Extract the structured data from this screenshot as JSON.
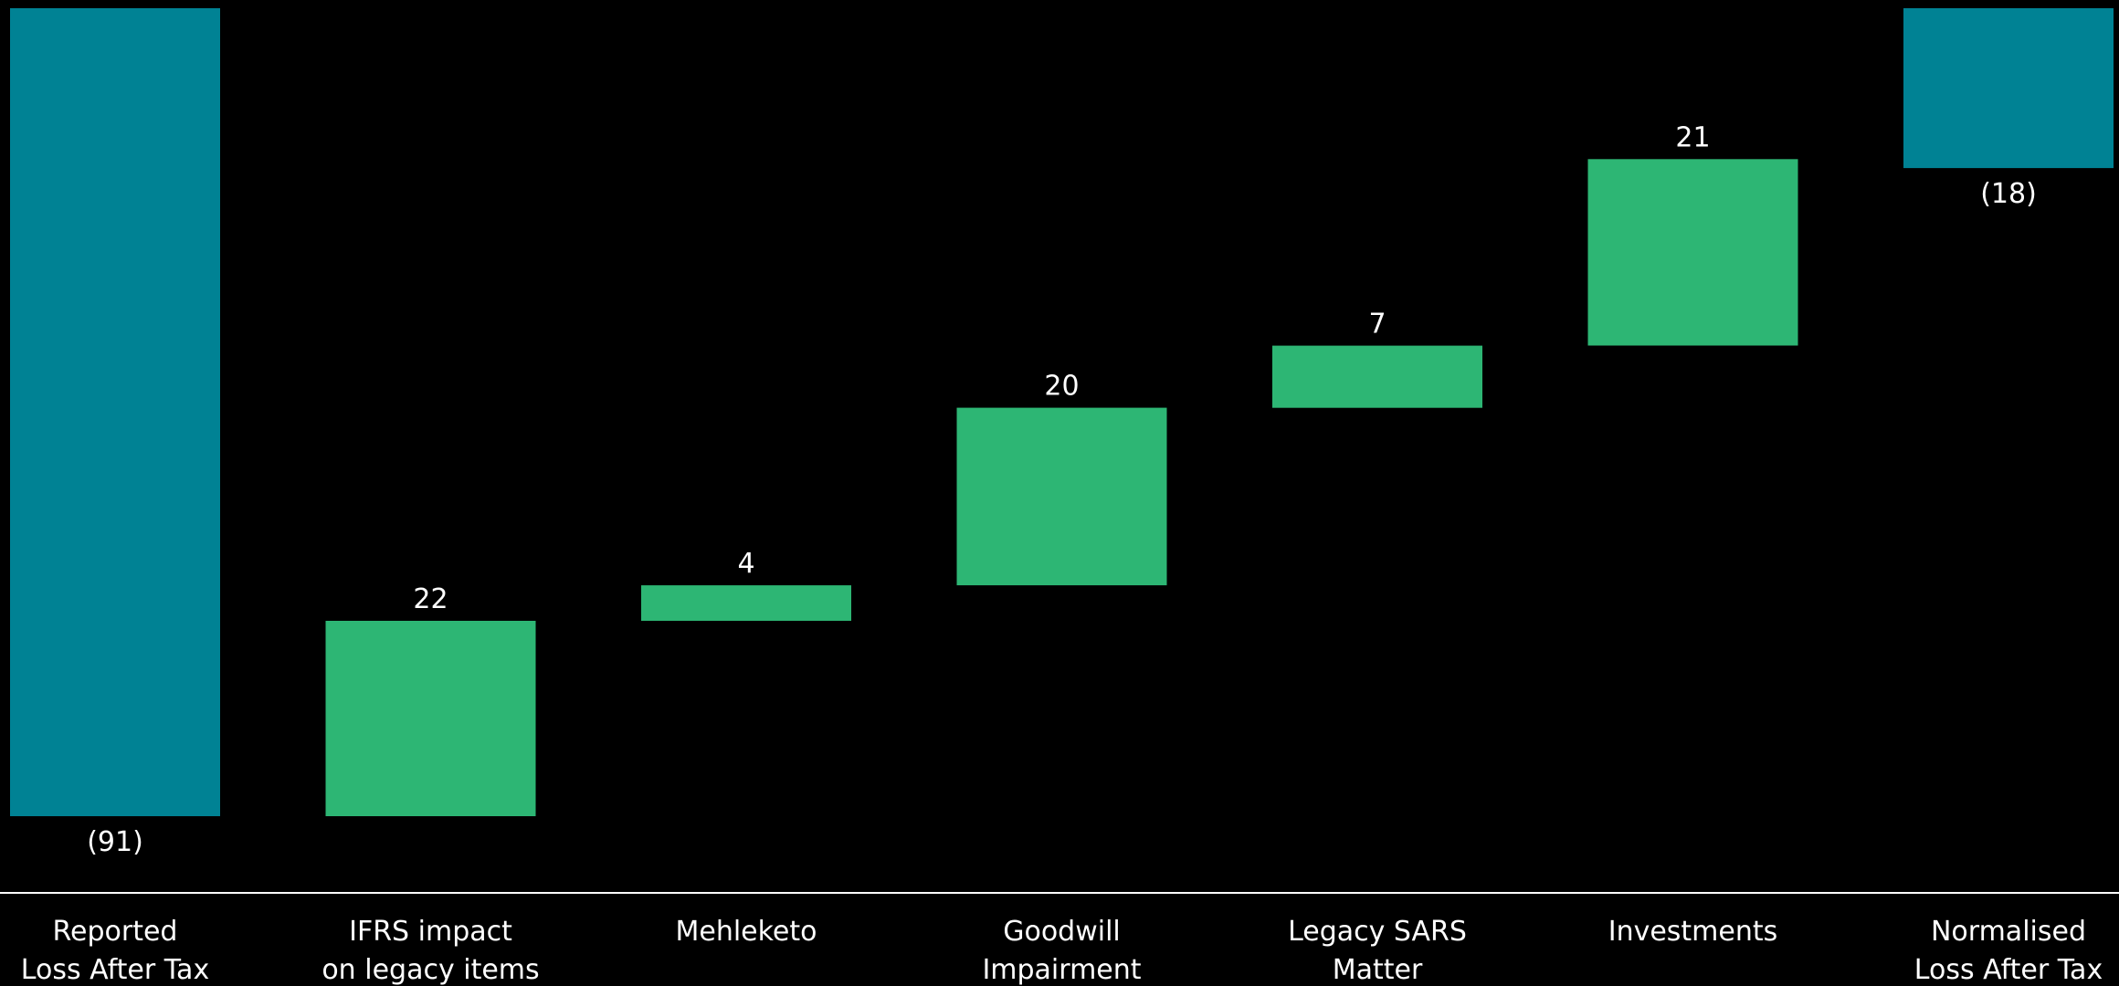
{
  "chart_data": {
    "type": "waterfall",
    "categories": [
      [
        "Reported",
        "Loss After Tax"
      ],
      [
        "IFRS impact",
        "on legacy items"
      ],
      [
        "Mehleketo"
      ],
      [
        "Goodwill",
        "Impairment"
      ],
      [
        "Legacy SARS",
        "Matter"
      ],
      [
        "Investments"
      ],
      [
        "Normalised",
        "Loss After Tax"
      ]
    ],
    "values": [
      -91,
      22,
      4,
      20,
      7,
      21,
      -18
    ],
    "labels": [
      "(91)",
      "22",
      "4",
      "20",
      "7",
      "21",
      "(18)"
    ],
    "kinds": [
      "total",
      "delta",
      "delta",
      "delta",
      "delta",
      "delta",
      "total"
    ],
    "ylim": [
      -91,
      0
    ],
    "colors": {
      "total": "#008294",
      "delta": "#2db674",
      "axis": "#ffffff",
      "text": "#ffffff",
      "background": "#000000"
    }
  }
}
